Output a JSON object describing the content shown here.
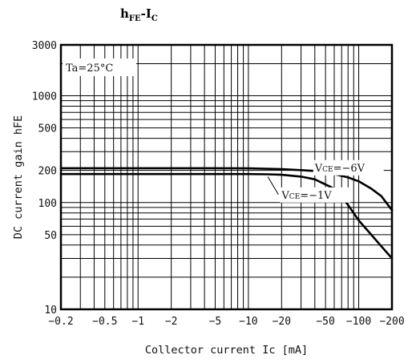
{
  "chart_data": {
    "type": "line",
    "title": "hFE-IC",
    "title_parts": {
      "main": "h",
      "sub1": "FE",
      "sep": "-I",
      "sub2": "C"
    },
    "xlabel": "Collector current Ic [mA]",
    "ylabel": "DC current gain hFE",
    "x_scale": "log",
    "y_scale": "log",
    "x_ticks": [
      "−0.2",
      "−0.5",
      "−1",
      "−2",
      "−5",
      "−10",
      "−20",
      "−50",
      "−100",
      "−200"
    ],
    "y_ticks": [
      "10",
      "50",
      "100",
      "200",
      "500",
      "1000",
      "3000"
    ],
    "xlim": [
      -0.2,
      -200
    ],
    "ylim": [
      10,
      3000
    ],
    "grid": true,
    "condition": "Ta=25°C",
    "series": [
      {
        "name": "VCE=−6V",
        "label_main": "V",
        "label_sub": "CE",
        "label_tail": "=−6V",
        "x": [
          -0.2,
          -1,
          -5,
          -10,
          -20,
          -40,
          -60,
          -80,
          -100,
          -130,
          -160,
          -200
        ],
        "y": [
          210,
          210,
          210,
          209,
          206,
          198,
          185,
          172,
          158,
          135,
          115,
          85
        ]
      },
      {
        "name": "VCE=−1V",
        "label_main": "V",
        "label_sub": "CE",
        "label_tail": "=−1V",
        "x": [
          -0.2,
          -1,
          -5,
          -10,
          -15,
          -20,
          -30,
          -40,
          -60,
          -80,
          -100,
          -130,
          -160,
          -200
        ],
        "y": [
          185,
          185,
          185,
          185,
          184,
          182,
          175,
          165,
          135,
          95,
          68,
          50,
          39,
          30
        ]
      }
    ]
  }
}
